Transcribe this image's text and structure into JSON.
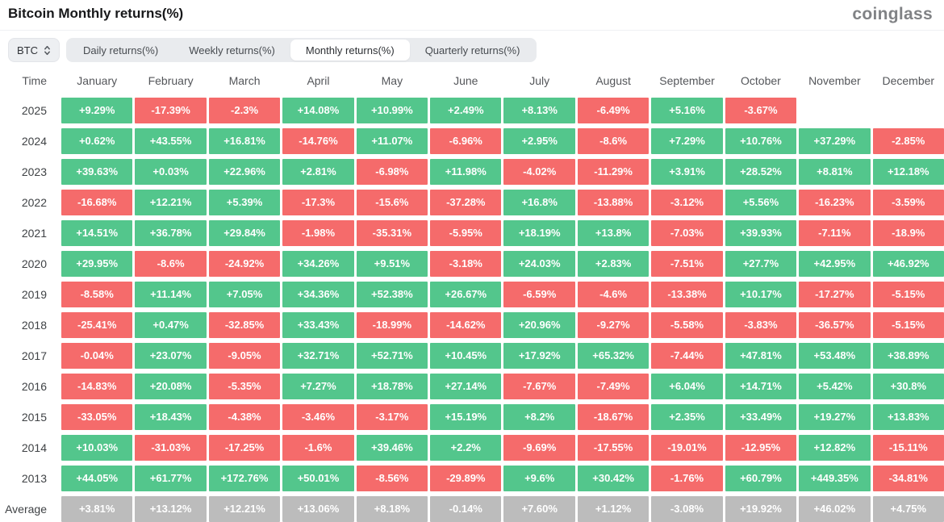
{
  "header": {
    "title": "Bitcoin Monthly returns(%)",
    "brand": "coinglass"
  },
  "controls": {
    "symbol": "BTC",
    "tabs": [
      {
        "label": "Daily returns(%)",
        "active": false
      },
      {
        "label": "Weekly returns(%)",
        "active": false
      },
      {
        "label": "Monthly returns(%)",
        "active": true
      },
      {
        "label": "Quarterly returns(%)",
        "active": false
      }
    ]
  },
  "colors": {
    "positive": "#53c68c",
    "negative": "#f56b6b",
    "average": "#bcbcbc"
  },
  "table": {
    "time_header": "Time",
    "columns": [
      "January",
      "February",
      "March",
      "April",
      "May",
      "June",
      "July",
      "August",
      "September",
      "October",
      "November",
      "December"
    ],
    "rows": [
      {
        "label": "2025",
        "type": "year",
        "values": [
          "+9.29%",
          "-17.39%",
          "-2.3%",
          "+14.08%",
          "+10.99%",
          "+2.49%",
          "+8.13%",
          "-6.49%",
          "+5.16%",
          "-3.67%",
          null,
          null
        ]
      },
      {
        "label": "2024",
        "type": "year",
        "values": [
          "+0.62%",
          "+43.55%",
          "+16.81%",
          "-14.76%",
          "+11.07%",
          "-6.96%",
          "+2.95%",
          "-8.6%",
          "+7.29%",
          "+10.76%",
          "+37.29%",
          "-2.85%"
        ]
      },
      {
        "label": "2023",
        "type": "year",
        "values": [
          "+39.63%",
          "+0.03%",
          "+22.96%",
          "+2.81%",
          "-6.98%",
          "+11.98%",
          "-4.02%",
          "-11.29%",
          "+3.91%",
          "+28.52%",
          "+8.81%",
          "+12.18%"
        ]
      },
      {
        "label": "2022",
        "type": "year",
        "values": [
          "-16.68%",
          "+12.21%",
          "+5.39%",
          "-17.3%",
          "-15.6%",
          "-37.28%",
          "+16.8%",
          "-13.88%",
          "-3.12%",
          "+5.56%",
          "-16.23%",
          "-3.59%"
        ]
      },
      {
        "label": "2021",
        "type": "year",
        "values": [
          "+14.51%",
          "+36.78%",
          "+29.84%",
          "-1.98%",
          "-35.31%",
          "-5.95%",
          "+18.19%",
          "+13.8%",
          "-7.03%",
          "+39.93%",
          "-7.11%",
          "-18.9%"
        ]
      },
      {
        "label": "2020",
        "type": "year",
        "values": [
          "+29.95%",
          "-8.6%",
          "-24.92%",
          "+34.26%",
          "+9.51%",
          "-3.18%",
          "+24.03%",
          "+2.83%",
          "-7.51%",
          "+27.7%",
          "+42.95%",
          "+46.92%"
        ]
      },
      {
        "label": "2019",
        "type": "year",
        "values": [
          "-8.58%",
          "+11.14%",
          "+7.05%",
          "+34.36%",
          "+52.38%",
          "+26.67%",
          "-6.59%",
          "-4.6%",
          "-13.38%",
          "+10.17%",
          "-17.27%",
          "-5.15%"
        ]
      },
      {
        "label": "2018",
        "type": "year",
        "values": [
          "-25.41%",
          "+0.47%",
          "-32.85%",
          "+33.43%",
          "-18.99%",
          "-14.62%",
          "+20.96%",
          "-9.27%",
          "-5.58%",
          "-3.83%",
          "-36.57%",
          "-5.15%"
        ]
      },
      {
        "label": "2017",
        "type": "year",
        "values": [
          "-0.04%",
          "+23.07%",
          "-9.05%",
          "+32.71%",
          "+52.71%",
          "+10.45%",
          "+17.92%",
          "+65.32%",
          "-7.44%",
          "+47.81%",
          "+53.48%",
          "+38.89%"
        ]
      },
      {
        "label": "2016",
        "type": "year",
        "values": [
          "-14.83%",
          "+20.08%",
          "-5.35%",
          "+7.27%",
          "+18.78%",
          "+27.14%",
          "-7.67%",
          "-7.49%",
          "+6.04%",
          "+14.71%",
          "+5.42%",
          "+30.8%"
        ]
      },
      {
        "label": "2015",
        "type": "year",
        "values": [
          "-33.05%",
          "+18.43%",
          "-4.38%",
          "-3.46%",
          "-3.17%",
          "+15.19%",
          "+8.2%",
          "-18.67%",
          "+2.35%",
          "+33.49%",
          "+19.27%",
          "+13.83%"
        ]
      },
      {
        "label": "2014",
        "type": "year",
        "values": [
          "+10.03%",
          "-31.03%",
          "-17.25%",
          "-1.6%",
          "+39.46%",
          "+2.2%",
          "-9.69%",
          "-17.55%",
          "-19.01%",
          "-12.95%",
          "+12.82%",
          "-15.11%"
        ]
      },
      {
        "label": "2013",
        "type": "year",
        "values": [
          "+44.05%",
          "+61.77%",
          "+172.76%",
          "+50.01%",
          "-8.56%",
          "-29.89%",
          "+9.6%",
          "+30.42%",
          "-1.76%",
          "+60.79%",
          "+449.35%",
          "-34.81%"
        ]
      },
      {
        "label": "Average",
        "type": "average",
        "values": [
          "+3.81%",
          "+13.12%",
          "+12.21%",
          "+13.06%",
          "+8.18%",
          "-0.14%",
          "+7.60%",
          "+1.12%",
          "-3.08%",
          "+19.92%",
          "+46.02%",
          "+4.75%"
        ]
      }
    ]
  }
}
